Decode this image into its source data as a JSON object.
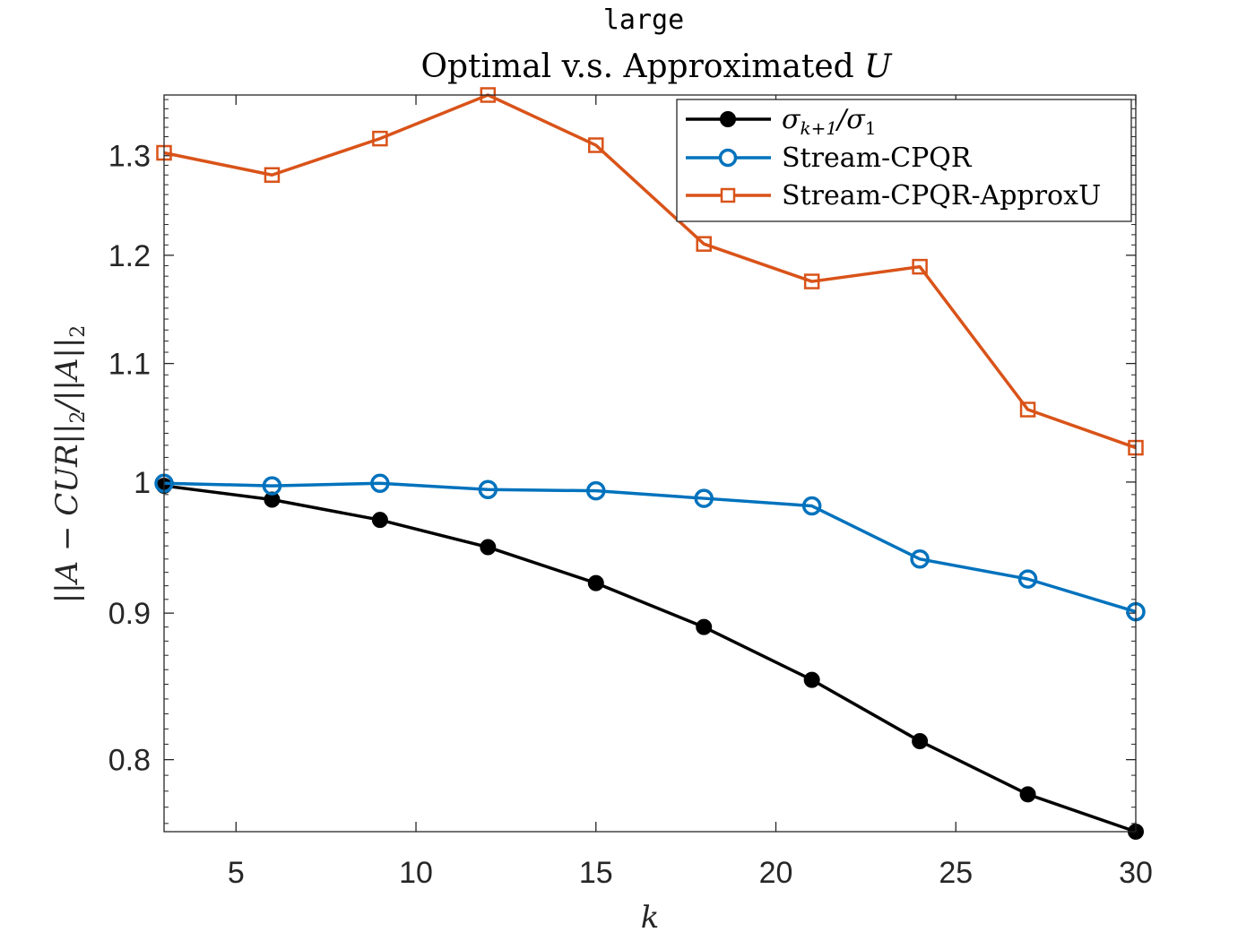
{
  "chart_data": {
    "type": "line",
    "title": "large",
    "subtitle": "Optimal v.s. Approximated U",
    "xlabel": "k",
    "ylabel": "||A − CUR||₂/||A||₂",
    "x": [
      3,
      6,
      9,
      12,
      15,
      18,
      21,
      24,
      27,
      30
    ],
    "xlim": [
      3,
      30
    ],
    "ylim": [
      0.755,
      1.365
    ],
    "yscale": "log",
    "xticks": [
      5,
      10,
      15,
      20,
      25,
      30
    ],
    "xtick_labels": [
      "5",
      "10",
      "15",
      "20",
      "25",
      "30"
    ],
    "yticks": [
      0.8,
      0.9,
      1.0,
      1.1,
      1.2,
      1.3
    ],
    "ytick_labels": [
      "0.8",
      "0.9",
      "1",
      "1.1",
      "1.2",
      "1.3"
    ],
    "grid": false,
    "legend_position": "top-right",
    "series": [
      {
        "name": "σk+1/σ1",
        "color": "#000000",
        "marker": "filled-circle",
        "values": [
          0.997,
          0.986,
          0.97,
          0.949,
          0.922,
          0.89,
          0.853,
          0.812,
          0.778,
          0.755
        ]
      },
      {
        "name": "Stream-CPQR",
        "color": "#0072BD",
        "marker": "open-circle",
        "values": [
          0.999,
          0.997,
          0.999,
          0.994,
          0.993,
          0.987,
          0.981,
          0.94,
          0.925,
          0.901
        ]
      },
      {
        "name": "Stream-CPQR-ApproxU",
        "color": "#D95319",
        "marker": "open-square",
        "values": [
          1.303,
          1.28,
          1.318,
          1.365,
          1.311,
          1.211,
          1.175,
          1.189,
          1.06,
          1.028
        ]
      }
    ]
  }
}
